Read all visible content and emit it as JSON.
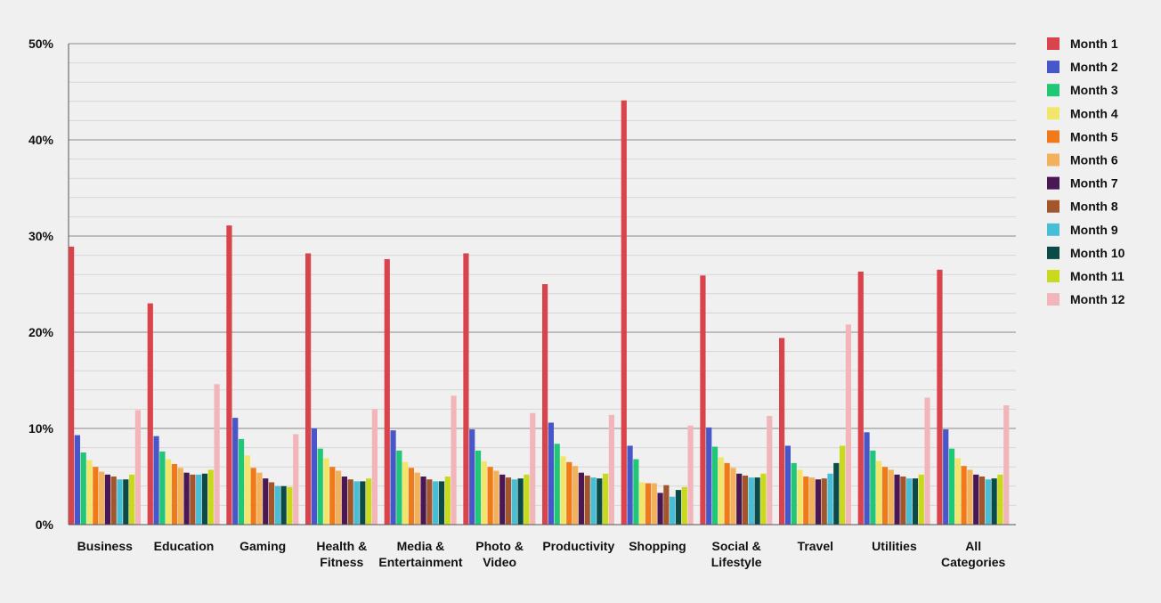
{
  "chart_data": {
    "type": "bar",
    "title": "",
    "xlabel": "",
    "ylabel": "",
    "ylim": [
      0,
      50
    ],
    "y_ticks": [
      0,
      10,
      20,
      30,
      40,
      50
    ],
    "y_tick_labels": [
      "0%",
      "10%",
      "20%",
      "30%",
      "40%",
      "50%"
    ],
    "grid": true,
    "legend_position": "right",
    "categories": [
      [
        "Business"
      ],
      [
        "Education"
      ],
      [
        "Gaming"
      ],
      [
        "Health &",
        "Fitness"
      ],
      [
        "Media &",
        "Entertainment"
      ],
      [
        "Photo &",
        "Video"
      ],
      [
        "Productivity"
      ],
      [
        "Shopping"
      ],
      [
        "Social &",
        "Lifestyle"
      ],
      [
        "Travel"
      ],
      [
        "Utilities"
      ],
      [
        "All",
        "Categories"
      ]
    ],
    "series": [
      {
        "name": "Month 1",
        "color": "#d9434b",
        "values": [
          28.9,
          23.0,
          31.1,
          28.2,
          27.6,
          28.2,
          25.0,
          44.1,
          25.9,
          19.4,
          26.3,
          26.5
        ]
      },
      {
        "name": "Month 2",
        "color": "#4756c8",
        "values": [
          9.3,
          9.2,
          11.1,
          10.0,
          9.8,
          9.9,
          10.6,
          8.2,
          10.1,
          8.2,
          9.6,
          9.9
        ]
      },
      {
        "name": "Month 3",
        "color": "#1fc776",
        "values": [
          7.5,
          7.6,
          8.9,
          7.9,
          7.7,
          7.7,
          8.4,
          6.8,
          8.1,
          6.4,
          7.7,
          7.9
        ]
      },
      {
        "name": "Month 4",
        "color": "#f2e66a",
        "values": [
          6.7,
          6.8,
          7.2,
          6.9,
          6.5,
          6.6,
          7.1,
          4.4,
          7.0,
          5.7,
          6.6,
          6.9
        ]
      },
      {
        "name": "Month 5",
        "color": "#f07a1a",
        "values": [
          6.0,
          6.3,
          5.9,
          6.0,
          5.9,
          6.0,
          6.5,
          4.3,
          6.4,
          5.0,
          6.0,
          6.1
        ]
      },
      {
        "name": "Month 6",
        "color": "#f2b25c",
        "values": [
          5.5,
          5.9,
          5.4,
          5.6,
          5.4,
          5.6,
          6.1,
          4.3,
          5.9,
          4.9,
          5.7,
          5.7
        ]
      },
      {
        "name": "Month 7",
        "color": "#4a1755",
        "values": [
          5.2,
          5.4,
          4.8,
          5.0,
          5.0,
          5.2,
          5.4,
          3.3,
          5.3,
          4.7,
          5.2,
          5.2
        ]
      },
      {
        "name": "Month 8",
        "color": "#a3552b",
        "values": [
          5.0,
          5.2,
          4.4,
          4.7,
          4.7,
          4.9,
          5.1,
          4.1,
          5.1,
          4.8,
          5.0,
          5.0
        ]
      },
      {
        "name": "Month 9",
        "color": "#47bed6",
        "values": [
          4.7,
          5.2,
          4.0,
          4.5,
          4.5,
          4.7,
          4.9,
          2.9,
          4.9,
          5.3,
          4.8,
          4.7
        ]
      },
      {
        "name": "Month 10",
        "color": "#0b4a47",
        "values": [
          4.7,
          5.3,
          4.0,
          4.5,
          4.5,
          4.8,
          4.8,
          3.6,
          4.9,
          6.4,
          4.8,
          4.8
        ]
      },
      {
        "name": "Month 11",
        "color": "#c9d91c",
        "values": [
          5.2,
          5.7,
          3.9,
          4.8,
          5.0,
          5.2,
          5.3,
          3.9,
          5.3,
          8.2,
          5.2,
          5.2
        ]
      },
      {
        "name": "Month 12",
        "color": "#f2b6ba",
        "values": [
          11.9,
          14.6,
          9.4,
          12.0,
          13.4,
          11.6,
          11.4,
          10.3,
          11.3,
          20.8,
          13.2,
          12.4
        ]
      }
    ]
  }
}
